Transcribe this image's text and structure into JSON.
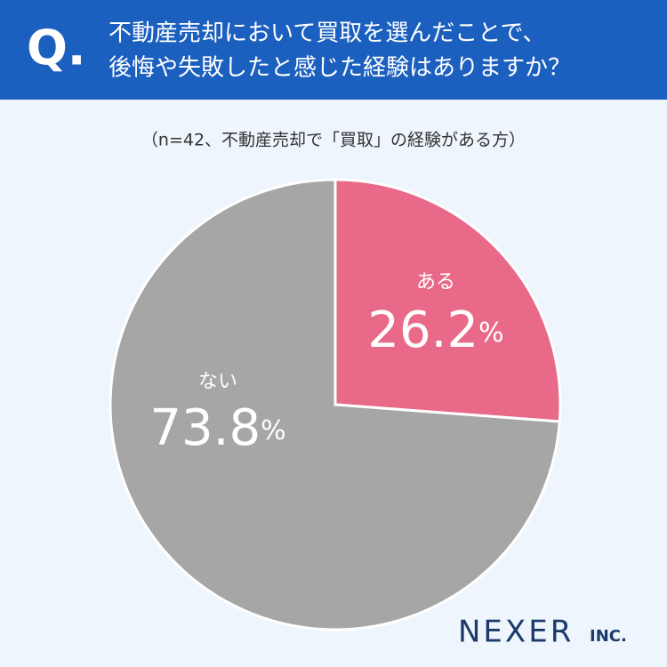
{
  "header": {
    "q": "Q.",
    "logo": "NEXER",
    "logo_suffix": "INC."
  },
  "chart_data": {
    "type": "pie",
    "title": [
      "不動産売却において買取を選んだことで、",
      "後悔や失敗したと感じた経験はありますか？"
    ],
    "subtitle": "（n=42、不動産売却で「買取」の経験がある方）",
    "categories": [
      "ある",
      "ない"
    ],
    "values": [
      26.2,
      73.8
    ],
    "value_labels": [
      "26.2%",
      "73.8%"
    ],
    "colors": [
      "#e96a88",
      "#a6a6a6"
    ]
  }
}
